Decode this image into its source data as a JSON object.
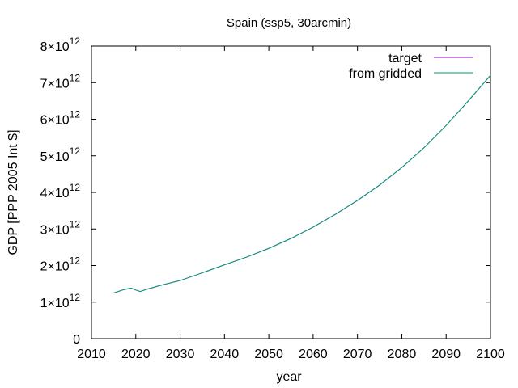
{
  "chart_data": {
    "type": "line",
    "title": "Spain (ssp5, 30arcmin)",
    "xlabel": "year",
    "ylabel": "GDP [PPP 2005 Int $]",
    "xlim": [
      2010,
      2100
    ],
    "ylim": [
      0,
      8000000000000
    ],
    "x_ticks": [
      2010,
      2020,
      2030,
      2040,
      2050,
      2060,
      2070,
      2080,
      2090,
      2100
    ],
    "y_ticks": [
      {
        "value": 0,
        "mantissa": "0",
        "exponent": ""
      },
      {
        "value": 1000000000000,
        "mantissa": "1×10",
        "exponent": "12"
      },
      {
        "value": 2000000000000,
        "mantissa": "2×10",
        "exponent": "12"
      },
      {
        "value": 3000000000000,
        "mantissa": "3×10",
        "exponent": "12"
      },
      {
        "value": 4000000000000,
        "mantissa": "4×10",
        "exponent": "12"
      },
      {
        "value": 5000000000000,
        "mantissa": "5×10",
        "exponent": "12"
      },
      {
        "value": 6000000000000,
        "mantissa": "6×10",
        "exponent": "12"
      },
      {
        "value": 7000000000000,
        "mantissa": "7×10",
        "exponent": "12"
      },
      {
        "value": 8000000000000,
        "mantissa": "8×10",
        "exponent": "12"
      }
    ],
    "legend_position": "top-right",
    "grid": false,
    "x": [
      2015,
      2016,
      2017,
      2018,
      2019,
      2020,
      2021,
      2022,
      2023,
      2024,
      2025,
      2026,
      2027,
      2028,
      2029,
      2030,
      2035,
      2040,
      2045,
      2050,
      2055,
      2060,
      2065,
      2070,
      2075,
      2080,
      2085,
      2090,
      2095,
      2100
    ],
    "series": [
      {
        "name": "target",
        "color": "#9400d3",
        "values": [
          1250000000000.0,
          1290000000000.0,
          1330000000000.0,
          1360000000000.0,
          1380000000000.0,
          1330000000000.0,
          1290000000000.0,
          1330000000000.0,
          1370000000000.0,
          1400000000000.0,
          1440000000000.0,
          1470000000000.0,
          1500000000000.0,
          1530000000000.0,
          1560000000000.0,
          1590000000000.0,
          1800000000000.0,
          2020000000000.0,
          2230000000000.0,
          2470000000000.0,
          2740000000000.0,
          3050000000000.0,
          3400000000000.0,
          3780000000000.0,
          4200000000000.0,
          4680000000000.0,
          5220000000000.0,
          5830000000000.0,
          6500000000000.0,
          7200000000000.0
        ]
      },
      {
        "name": "from gridded",
        "color": "#009e73",
        "values": [
          1250000000000.0,
          1290000000000.0,
          1330000000000.0,
          1360000000000.0,
          1380000000000.0,
          1330000000000.0,
          1290000000000.0,
          1330000000000.0,
          1370000000000.0,
          1400000000000.0,
          1440000000000.0,
          1470000000000.0,
          1500000000000.0,
          1530000000000.0,
          1560000000000.0,
          1590000000000.0,
          1800000000000.0,
          2020000000000.0,
          2230000000000.0,
          2470000000000.0,
          2740000000000.0,
          3050000000000.0,
          3400000000000.0,
          3780000000000.0,
          4200000000000.0,
          4680000000000.0,
          5220000000000.0,
          5830000000000.0,
          6500000000000.0,
          7200000000000.0
        ]
      }
    ]
  }
}
